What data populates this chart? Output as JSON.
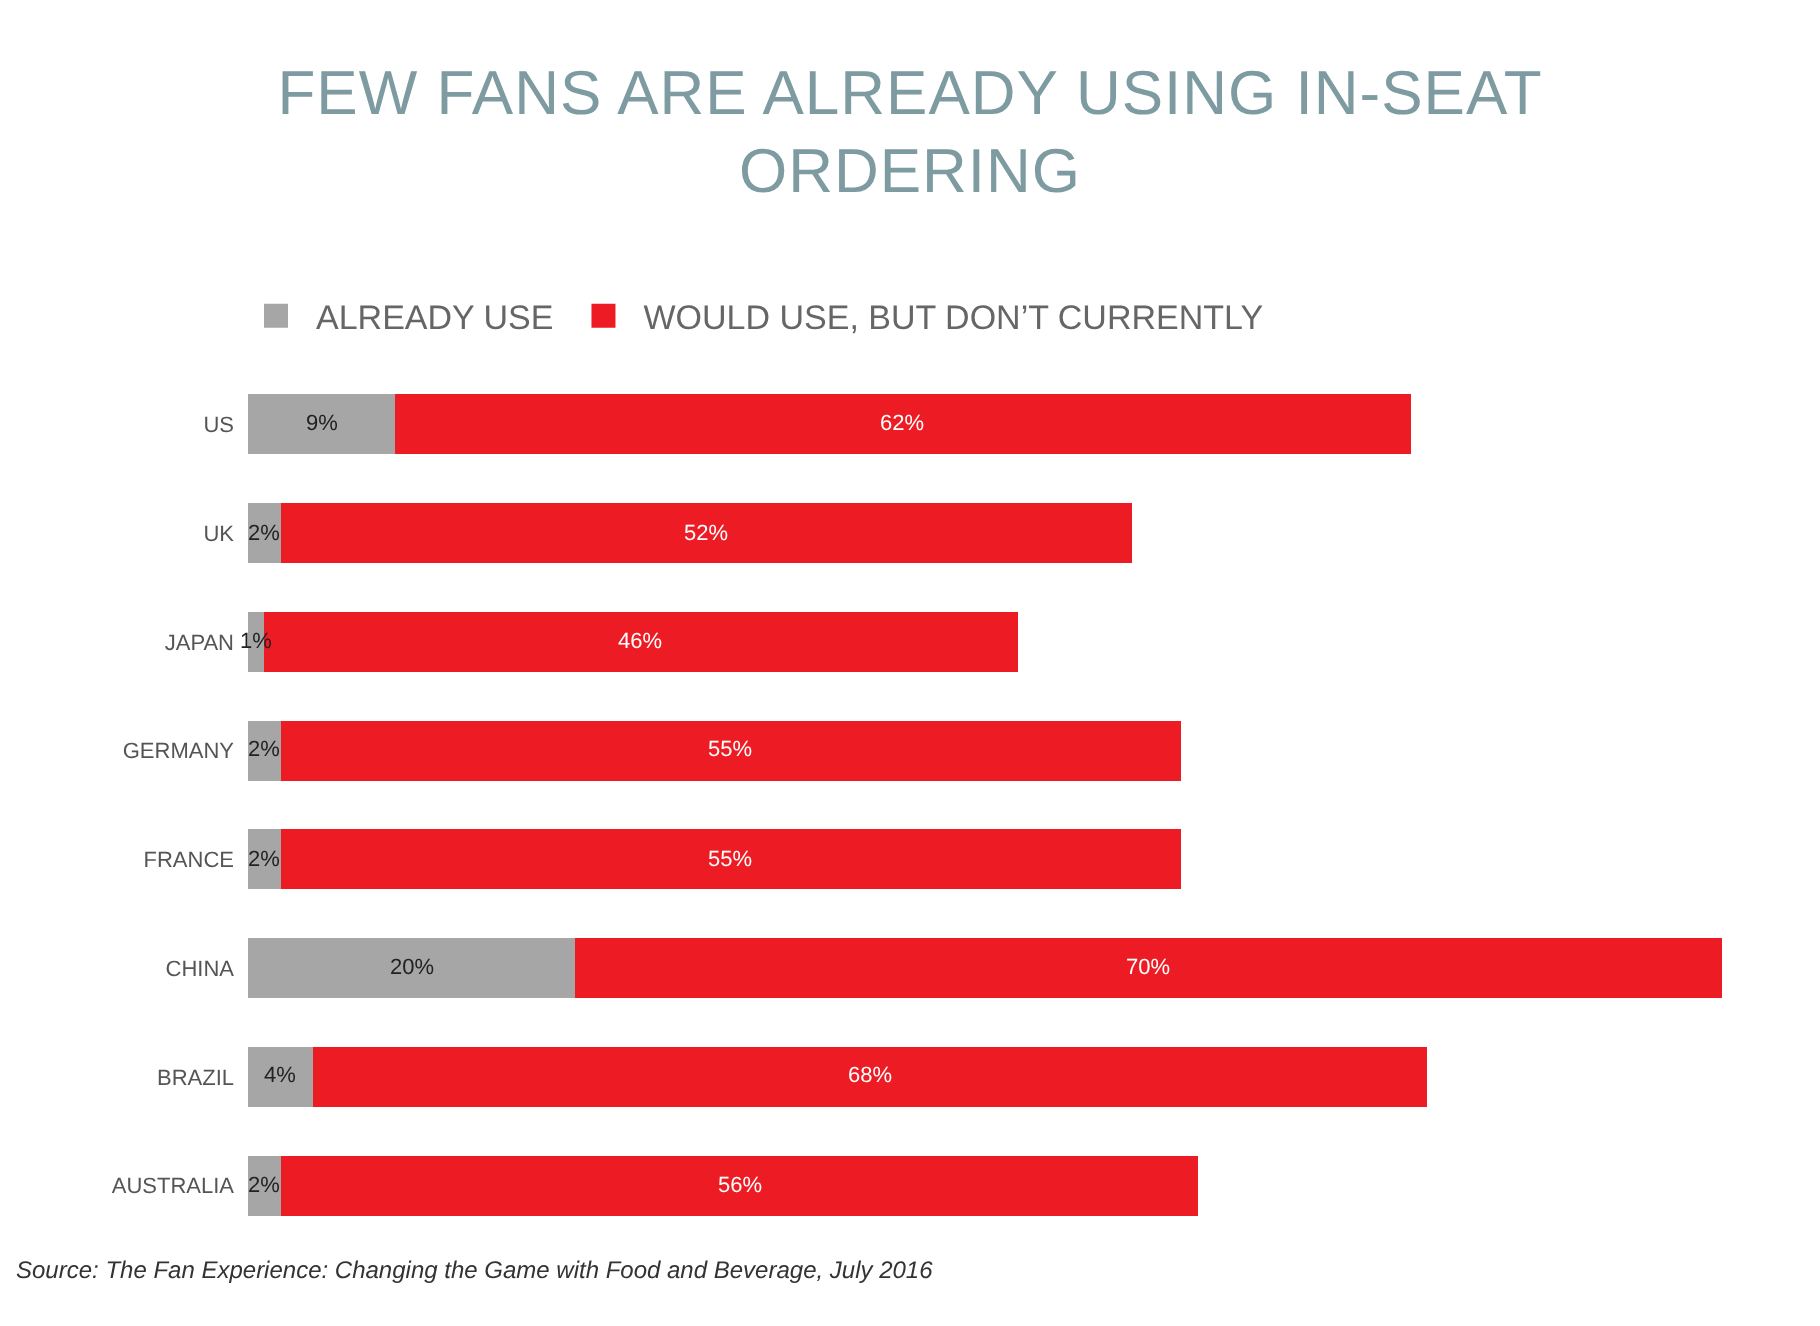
{
  "chart_data": {
    "type": "bar",
    "title": "FEW FANS ARE ALREADY USING IN-SEAT ORDERING",
    "categories": [
      "US",
      "UK",
      "JAPAN",
      "GERMANY",
      "FRANCE",
      "CHINA",
      "BRAZIL",
      "AUSTRALIA"
    ],
    "series": [
      {
        "name": "ALREADY USE",
        "color": "#a6a6a6",
        "values": [
          9,
          2,
          1,
          2,
          2,
          20,
          4,
          2
        ],
        "value_labels": [
          "9%",
          "2%",
          "1%",
          "2%",
          "2%",
          "20%",
          "4%",
          "2%"
        ]
      },
      {
        "name": "WOULD USE, BUT DON’T CURRENTLY",
        "color": "#ed1c24",
        "values": [
          62,
          52,
          46,
          55,
          55,
          70,
          68,
          56
        ],
        "value_labels": [
          "62%",
          "52%",
          "46%",
          "55%",
          "55%",
          "70%",
          "68%",
          "56%"
        ]
      }
    ],
    "stacked": true,
    "orientation": "horizontal",
    "tick_labels": "y",
    "grid": false,
    "legend": "top left",
    "annotations": [
      "Source: The Fan Experience: Changing the Game with Food and Beverage, July 2016"
    ]
  }
}
